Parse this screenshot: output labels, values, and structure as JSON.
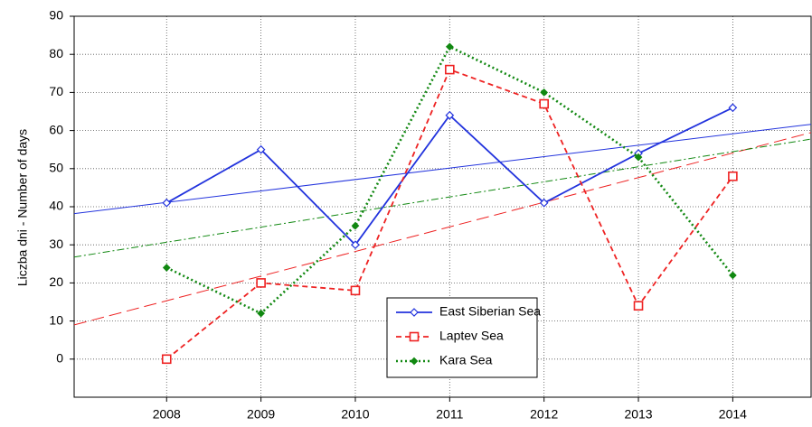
{
  "chart_data": {
    "type": "line",
    "y_label": "Liczba dni - Number of days",
    "x": [
      2008,
      2009,
      2010,
      2011,
      2012,
      2013,
      2014
    ],
    "series": [
      {
        "name": "East Siberian Sea",
        "color": "#2233dd",
        "marker": "diamond-open",
        "dash": "solid",
        "values": [
          41,
          55,
          30,
          64,
          41,
          54,
          66
        ]
      },
      {
        "name": "Laptev Sea",
        "color": "#ee2222",
        "marker": "square-open",
        "dash": "dashed",
        "values": [
          0,
          20,
          18,
          76,
          67,
          14,
          48
        ]
      },
      {
        "name": "Kara Sea",
        "color": "#118811",
        "marker": "diamond-filled",
        "dash": "dotted",
        "values": [
          24,
          12,
          35,
          82,
          70,
          53,
          22
        ]
      }
    ],
    "xlim": [
      2007.02,
      2014.83
    ],
    "ylim": [
      -10,
      90
    ],
    "xticks": [
      2008,
      2009,
      2010,
      2011,
      2012,
      2013,
      2014
    ],
    "yticks": [
      0,
      10,
      20,
      30,
      40,
      50,
      60,
      70,
      80,
      90
    ],
    "grid": true,
    "trend_lines": true,
    "legend": "bottom-center"
  }
}
